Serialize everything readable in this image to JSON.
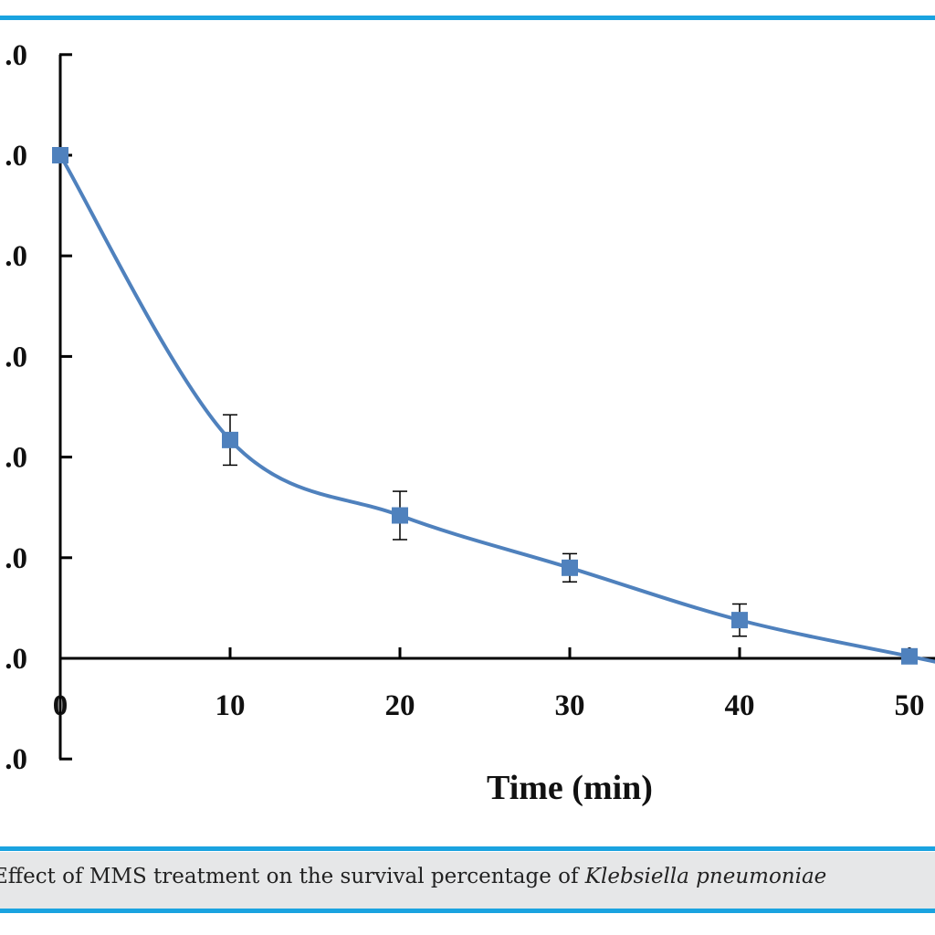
{
  "caption": {
    "text": "Effect of MMS treatment on the survival percentage of ",
    "species": "Klebsiella pneumoniae"
  },
  "colors": {
    "rule": "#1aa3e0",
    "series": "#4f81bd",
    "caption_bg": "#e6e7e8"
  },
  "chart_data": {
    "type": "line",
    "title": "",
    "xlabel": "Time (min)",
    "ylabel": "",
    "x_ticks": [
      "0",
      "10",
      "20",
      "30",
      "40",
      "50"
    ],
    "y_ticks": [
      ".0",
      ".0",
      ".0",
      ".0",
      ".0",
      ".0",
      ".0",
      ".0"
    ],
    "xlim": [
      0,
      52
    ],
    "ylim": [
      -1,
      6
    ],
    "smooth": true,
    "grid": false,
    "legend": "none",
    "marker": "square",
    "series": [
      {
        "x": [
          0,
          10,
          20,
          30,
          40,
          50
        ],
        "y": [
          5.0,
          2.17,
          1.42,
          0.9,
          0.38,
          0.02
        ],
        "err": [
          0,
          0.25,
          0.24,
          0.14,
          0.16,
          0
        ]
      }
    ]
  }
}
